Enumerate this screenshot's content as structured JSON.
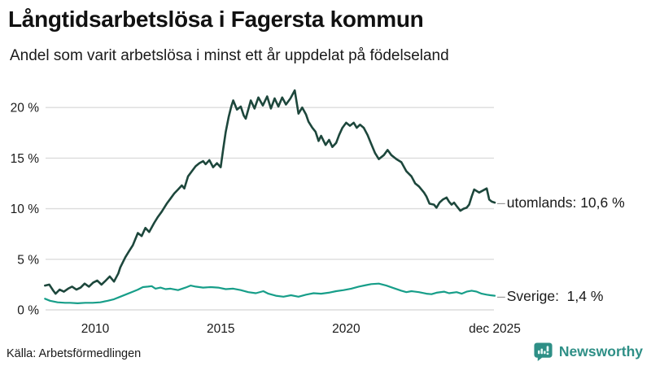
{
  "header": {
    "title": "Långtidsarbetslösa i Fagersta kommun",
    "subtitle": "Andel som varit arbetslösa i minst ett år uppdelat på födelseland"
  },
  "footer": {
    "source": "Källa: Arbetsförmedlingen",
    "logo_text": "Newsworthy"
  },
  "colors": {
    "utomlands_line": "#1d473c",
    "sverige_line": "#179e89",
    "grid": "#dcdcdc",
    "connector": "#999999",
    "brand_teal": "#2e8f86",
    "text": "#111111"
  },
  "chart_data": {
    "type": "line",
    "title": "Långtidsarbetslösa i Fagersta kommun",
    "subtitle": "Andel som varit arbetslösa i minst ett år uppdelat på födelseland",
    "grid": true,
    "x_axis": {
      "range_years": [
        2008.0,
        2025.92
      ],
      "ticks": [
        {
          "label": "2010",
          "year": 2010
        },
        {
          "label": "2015",
          "year": 2015
        },
        {
          "label": "2020",
          "year": 2020
        },
        {
          "label": "dec 2025",
          "year": 2025.92
        }
      ]
    },
    "y_axis": {
      "range": [
        0,
        22
      ],
      "unit": "%",
      "ticks": [
        {
          "label": "0 %",
          "value": 0
        },
        {
          "label": "5 %",
          "value": 5
        },
        {
          "label": "10 %",
          "value": 10
        },
        {
          "label": "15 %",
          "value": 15
        },
        {
          "label": "20 %",
          "value": 20
        }
      ]
    },
    "series": [
      {
        "name": "utomlands",
        "color": "#1d473c",
        "stroke_width": 2.6,
        "connector": "–",
        "end_label": "utomlands: 10,6 %",
        "end_value": "10,6 %",
        "points": [
          [
            2008.0,
            2.4
          ],
          [
            2008.17,
            2.5
          ],
          [
            2008.33,
            1.9
          ],
          [
            2008.42,
            1.6
          ],
          [
            2008.58,
            2.0
          ],
          [
            2008.75,
            1.8
          ],
          [
            2008.92,
            2.1
          ],
          [
            2009.08,
            2.3
          ],
          [
            2009.25,
            2.0
          ],
          [
            2009.42,
            2.2
          ],
          [
            2009.58,
            2.6
          ],
          [
            2009.75,
            2.3
          ],
          [
            2009.92,
            2.7
          ],
          [
            2010.08,
            2.9
          ],
          [
            2010.25,
            2.5
          ],
          [
            2010.42,
            2.9
          ],
          [
            2010.58,
            3.3
          ],
          [
            2010.75,
            2.8
          ],
          [
            2010.92,
            3.6
          ],
          [
            2011.0,
            4.2
          ],
          [
            2011.2,
            5.2
          ],
          [
            2011.35,
            5.8
          ],
          [
            2011.5,
            6.4
          ],
          [
            2011.7,
            7.6
          ],
          [
            2011.85,
            7.3
          ],
          [
            2012.0,
            8.1
          ],
          [
            2012.15,
            7.7
          ],
          [
            2012.35,
            8.6
          ],
          [
            2012.5,
            9.2
          ],
          [
            2012.65,
            9.7
          ],
          [
            2012.85,
            10.5
          ],
          [
            2013.0,
            11.0
          ],
          [
            2013.15,
            11.5
          ],
          [
            2013.3,
            11.9
          ],
          [
            2013.45,
            12.3
          ],
          [
            2013.55,
            12.0
          ],
          [
            2013.7,
            13.2
          ],
          [
            2013.85,
            13.7
          ],
          [
            2014.0,
            14.2
          ],
          [
            2014.15,
            14.5
          ],
          [
            2014.3,
            14.7
          ],
          [
            2014.4,
            14.4
          ],
          [
            2014.55,
            14.8
          ],
          [
            2014.7,
            14.1
          ],
          [
            2014.85,
            14.5
          ],
          [
            2015.0,
            14.1
          ],
          [
            2015.1,
            15.9
          ],
          [
            2015.2,
            17.6
          ],
          [
            2015.32,
            19.1
          ],
          [
            2015.42,
            20.1
          ],
          [
            2015.5,
            20.7
          ],
          [
            2015.65,
            19.8
          ],
          [
            2015.8,
            20.1
          ],
          [
            2015.92,
            19.2
          ],
          [
            2016.0,
            18.9
          ],
          [
            2016.2,
            20.7
          ],
          [
            2016.35,
            19.9
          ],
          [
            2016.5,
            21.0
          ],
          [
            2016.68,
            20.2
          ],
          [
            2016.85,
            21.1
          ],
          [
            2017.0,
            19.9
          ],
          [
            2017.15,
            20.9
          ],
          [
            2017.3,
            20.1
          ],
          [
            2017.45,
            21.0
          ],
          [
            2017.6,
            20.3
          ],
          [
            2017.78,
            20.9
          ],
          [
            2017.95,
            21.7
          ],
          [
            2018.1,
            19.4
          ],
          [
            2018.25,
            20.0
          ],
          [
            2018.4,
            19.3
          ],
          [
            2018.5,
            18.6
          ],
          [
            2018.65,
            18.0
          ],
          [
            2018.78,
            17.6
          ],
          [
            2018.9,
            16.7
          ],
          [
            2019.0,
            17.2
          ],
          [
            2019.18,
            16.3
          ],
          [
            2019.32,
            16.8
          ],
          [
            2019.45,
            16.1
          ],
          [
            2019.6,
            16.5
          ],
          [
            2019.72,
            17.3
          ],
          [
            2019.85,
            18.0
          ],
          [
            2020.0,
            18.5
          ],
          [
            2020.15,
            18.2
          ],
          [
            2020.3,
            18.5
          ],
          [
            2020.42,
            18.0
          ],
          [
            2020.55,
            18.3
          ],
          [
            2020.7,
            18.0
          ],
          [
            2020.85,
            17.3
          ],
          [
            2021.0,
            16.4
          ],
          [
            2021.15,
            15.5
          ],
          [
            2021.3,
            14.9
          ],
          [
            2021.5,
            15.3
          ],
          [
            2021.65,
            15.8
          ],
          [
            2021.8,
            15.3
          ],
          [
            2022.0,
            14.9
          ],
          [
            2022.2,
            14.6
          ],
          [
            2022.4,
            13.7
          ],
          [
            2022.6,
            13.2
          ],
          [
            2022.75,
            12.5
          ],
          [
            2022.9,
            12.2
          ],
          [
            2023.1,
            11.6
          ],
          [
            2023.2,
            11.2
          ],
          [
            2023.32,
            10.5
          ],
          [
            2023.5,
            10.4
          ],
          [
            2023.6,
            10.1
          ],
          [
            2023.72,
            10.6
          ],
          [
            2023.85,
            10.9
          ],
          [
            2024.0,
            11.1
          ],
          [
            2024.1,
            10.7
          ],
          [
            2024.2,
            10.4
          ],
          [
            2024.3,
            10.6
          ],
          [
            2024.42,
            10.2
          ],
          [
            2024.55,
            9.8
          ],
          [
            2024.68,
            10.0
          ],
          [
            2024.8,
            10.1
          ],
          [
            2024.9,
            10.4
          ],
          [
            2025.0,
            11.2
          ],
          [
            2025.1,
            11.9
          ],
          [
            2025.3,
            11.6
          ],
          [
            2025.45,
            11.8
          ],
          [
            2025.6,
            12.0
          ],
          [
            2025.7,
            10.9
          ],
          [
            2025.8,
            10.7
          ],
          [
            2025.92,
            10.6
          ]
        ]
      },
      {
        "name": "Sverige",
        "color": "#179e89",
        "stroke_width": 2.2,
        "connector": "–",
        "end_label": "Sverige:  1,4 %",
        "end_value": "1,4 %",
        "points": [
          [
            2008.0,
            1.1
          ],
          [
            2008.2,
            0.9
          ],
          [
            2008.5,
            0.75
          ],
          [
            2008.8,
            0.7
          ],
          [
            2009.0,
            0.7
          ],
          [
            2009.3,
            0.65
          ],
          [
            2009.6,
            0.7
          ],
          [
            2009.9,
            0.7
          ],
          [
            2010.2,
            0.75
          ],
          [
            2010.5,
            0.9
          ],
          [
            2010.75,
            1.05
          ],
          [
            2011.0,
            1.3
          ],
          [
            2011.25,
            1.55
          ],
          [
            2011.5,
            1.8
          ],
          [
            2011.7,
            2.0
          ],
          [
            2011.9,
            2.25
          ],
          [
            2012.1,
            2.3
          ],
          [
            2012.25,
            2.35
          ],
          [
            2012.4,
            2.1
          ],
          [
            2012.6,
            2.2
          ],
          [
            2012.8,
            2.05
          ],
          [
            2013.0,
            2.1
          ],
          [
            2013.3,
            1.95
          ],
          [
            2013.6,
            2.2
          ],
          [
            2013.8,
            2.4
          ],
          [
            2014.0,
            2.3
          ],
          [
            2014.3,
            2.2
          ],
          [
            2014.6,
            2.25
          ],
          [
            2014.9,
            2.2
          ],
          [
            2015.2,
            2.05
          ],
          [
            2015.5,
            2.1
          ],
          [
            2015.8,
            1.95
          ],
          [
            2016.1,
            1.75
          ],
          [
            2016.4,
            1.65
          ],
          [
            2016.7,
            1.85
          ],
          [
            2016.9,
            1.6
          ],
          [
            2017.2,
            1.4
          ],
          [
            2017.5,
            1.3
          ],
          [
            2017.8,
            1.45
          ],
          [
            2018.1,
            1.3
          ],
          [
            2018.4,
            1.5
          ],
          [
            2018.7,
            1.65
          ],
          [
            2019.0,
            1.6
          ],
          [
            2019.3,
            1.7
          ],
          [
            2019.6,
            1.85
          ],
          [
            2019.9,
            1.95
          ],
          [
            2020.2,
            2.1
          ],
          [
            2020.5,
            2.3
          ],
          [
            2020.8,
            2.45
          ],
          [
            2021.0,
            2.55
          ],
          [
            2021.3,
            2.6
          ],
          [
            2021.6,
            2.4
          ],
          [
            2021.9,
            2.15
          ],
          [
            2022.2,
            1.9
          ],
          [
            2022.4,
            1.75
          ],
          [
            2022.6,
            1.85
          ],
          [
            2022.9,
            1.75
          ],
          [
            2023.2,
            1.6
          ],
          [
            2023.4,
            1.55
          ],
          [
            2023.6,
            1.7
          ],
          [
            2023.9,
            1.8
          ],
          [
            2024.1,
            1.65
          ],
          [
            2024.4,
            1.75
          ],
          [
            2024.6,
            1.6
          ],
          [
            2024.8,
            1.8
          ],
          [
            2025.0,
            1.9
          ],
          [
            2025.2,
            1.8
          ],
          [
            2025.4,
            1.6
          ],
          [
            2025.6,
            1.5
          ],
          [
            2025.75,
            1.45
          ],
          [
            2025.92,
            1.4
          ]
        ]
      }
    ],
    "legend_position": "line-end-labels-right"
  }
}
